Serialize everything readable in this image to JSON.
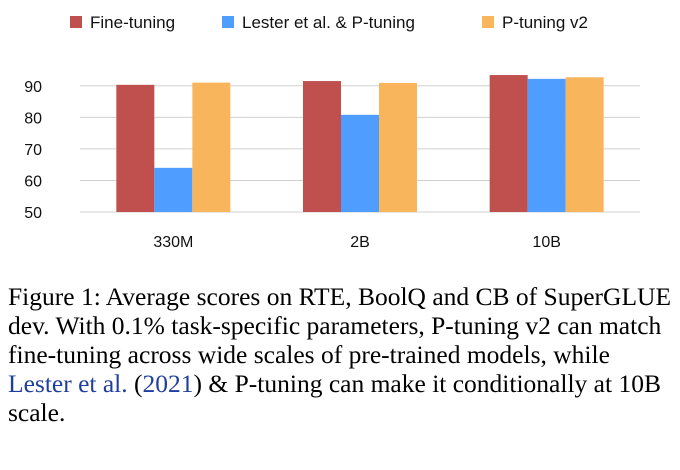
{
  "chart_data": {
    "type": "bar",
    "categories": [
      "330M",
      "2B",
      "10B"
    ],
    "series": [
      {
        "name": "Fine-tuning",
        "color": "#c0504d",
        "values": [
          90.3,
          91.5,
          93.4
        ]
      },
      {
        "name": "Lester et al. & P-tuning",
        "color": "#4f9dff",
        "values": [
          64.0,
          80.8,
          92.2
        ]
      },
      {
        "name": "P-tuning v2",
        "color": "#f9b55b",
        "values": [
          91.0,
          90.9,
          92.7
        ]
      }
    ],
    "ylim": [
      50,
      95
    ],
    "yticks": [
      50,
      60,
      70,
      80,
      90
    ],
    "grid": true,
    "legend": "top"
  },
  "caption": {
    "label": "Figure 1:",
    "text_1": "Average scores on RTE, BoolQ and CB of SuperGLUE dev. With 0.1% task-specific parameters, P-tuning v2 can match fine-tuning across wide scales of pre-trained models, while",
    "cite_author": "Lester et al.",
    "cite_open": "(",
    "cite_year": "2021",
    "cite_close": ")",
    "text_2": "& P-tuning can make it conditionally at 10B scale."
  }
}
